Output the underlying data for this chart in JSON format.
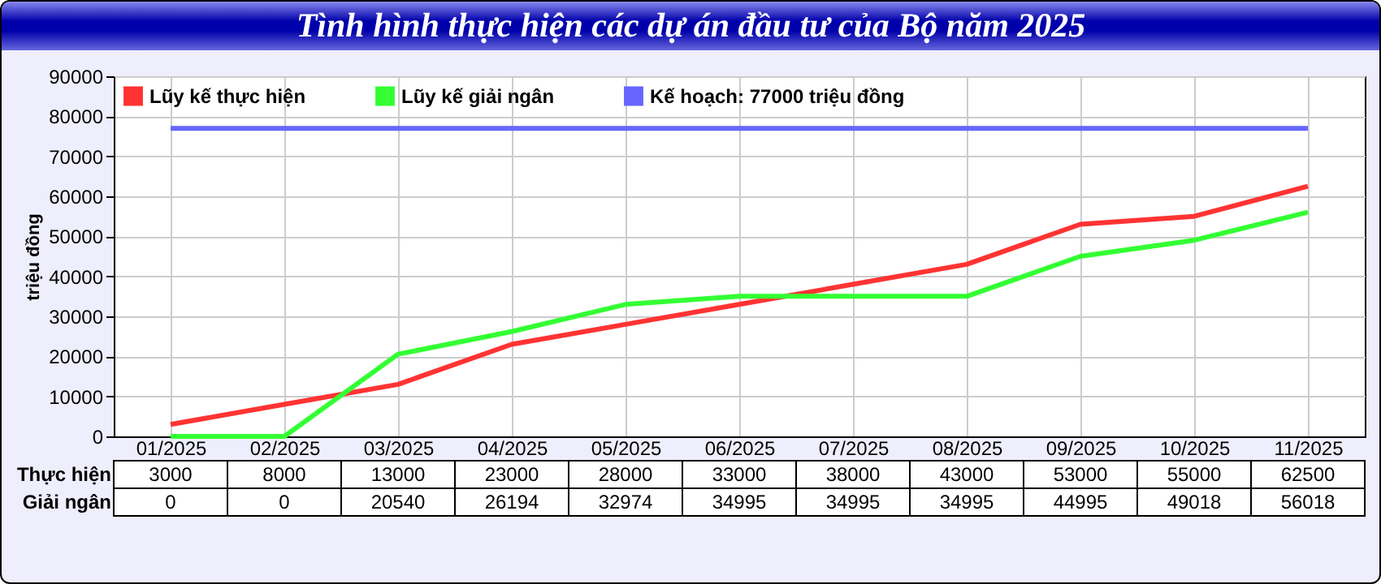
{
  "chart_data": {
    "type": "line",
    "title": "Tình hình thực hiện các dự án đầu tư của Bộ năm 2025",
    "ylabel": "triệu đồng",
    "categories": [
      "01/2025",
      "02/2025",
      "03/2025",
      "04/2025",
      "05/2025",
      "06/2025",
      "07/2025",
      "08/2025",
      "09/2025",
      "10/2025",
      "11/2025"
    ],
    "series": [
      {
        "name": "Lũy kế thực hiện",
        "color": "#ff3333",
        "values": [
          3000,
          8000,
          13000,
          23000,
          28000,
          33000,
          38000,
          43000,
          53000,
          55000,
          62500
        ],
        "value_labels": [
          "3000",
          "8000",
          "13000",
          "23000",
          "28000",
          "33000",
          "38000",
          "43000",
          "53000",
          "55000",
          "62500"
        ]
      },
      {
        "name": "Lũy kế giải ngân",
        "color": "#33ff33",
        "values": [
          0,
          0,
          20540,
          26194,
          32974,
          34995,
          34995,
          34995,
          44995,
          49018,
          56018
        ],
        "value_labels": [
          "0",
          "0",
          "20540",
          "26194",
          "32974",
          "34995",
          "34995",
          "34995",
          "44995",
          "49018",
          "56018"
        ]
      },
      {
        "name": "Kế hoạch: 77000 triệu đồng",
        "color": "#6666ff",
        "values": [
          77000,
          77000,
          77000,
          77000,
          77000,
          77000,
          77000,
          77000,
          77000,
          77000,
          77000
        ]
      }
    ],
    "annotations": [
      "Thực hiện",
      "Giải ngân"
    ],
    "ylim": [
      0,
      90000
    ],
    "yticks": [
      0,
      10000,
      20000,
      30000,
      40000,
      50000,
      60000,
      70000,
      80000,
      90000
    ],
    "grid": true,
    "legend": "top left",
    "marker": "none",
    "line_style": "solid"
  }
}
